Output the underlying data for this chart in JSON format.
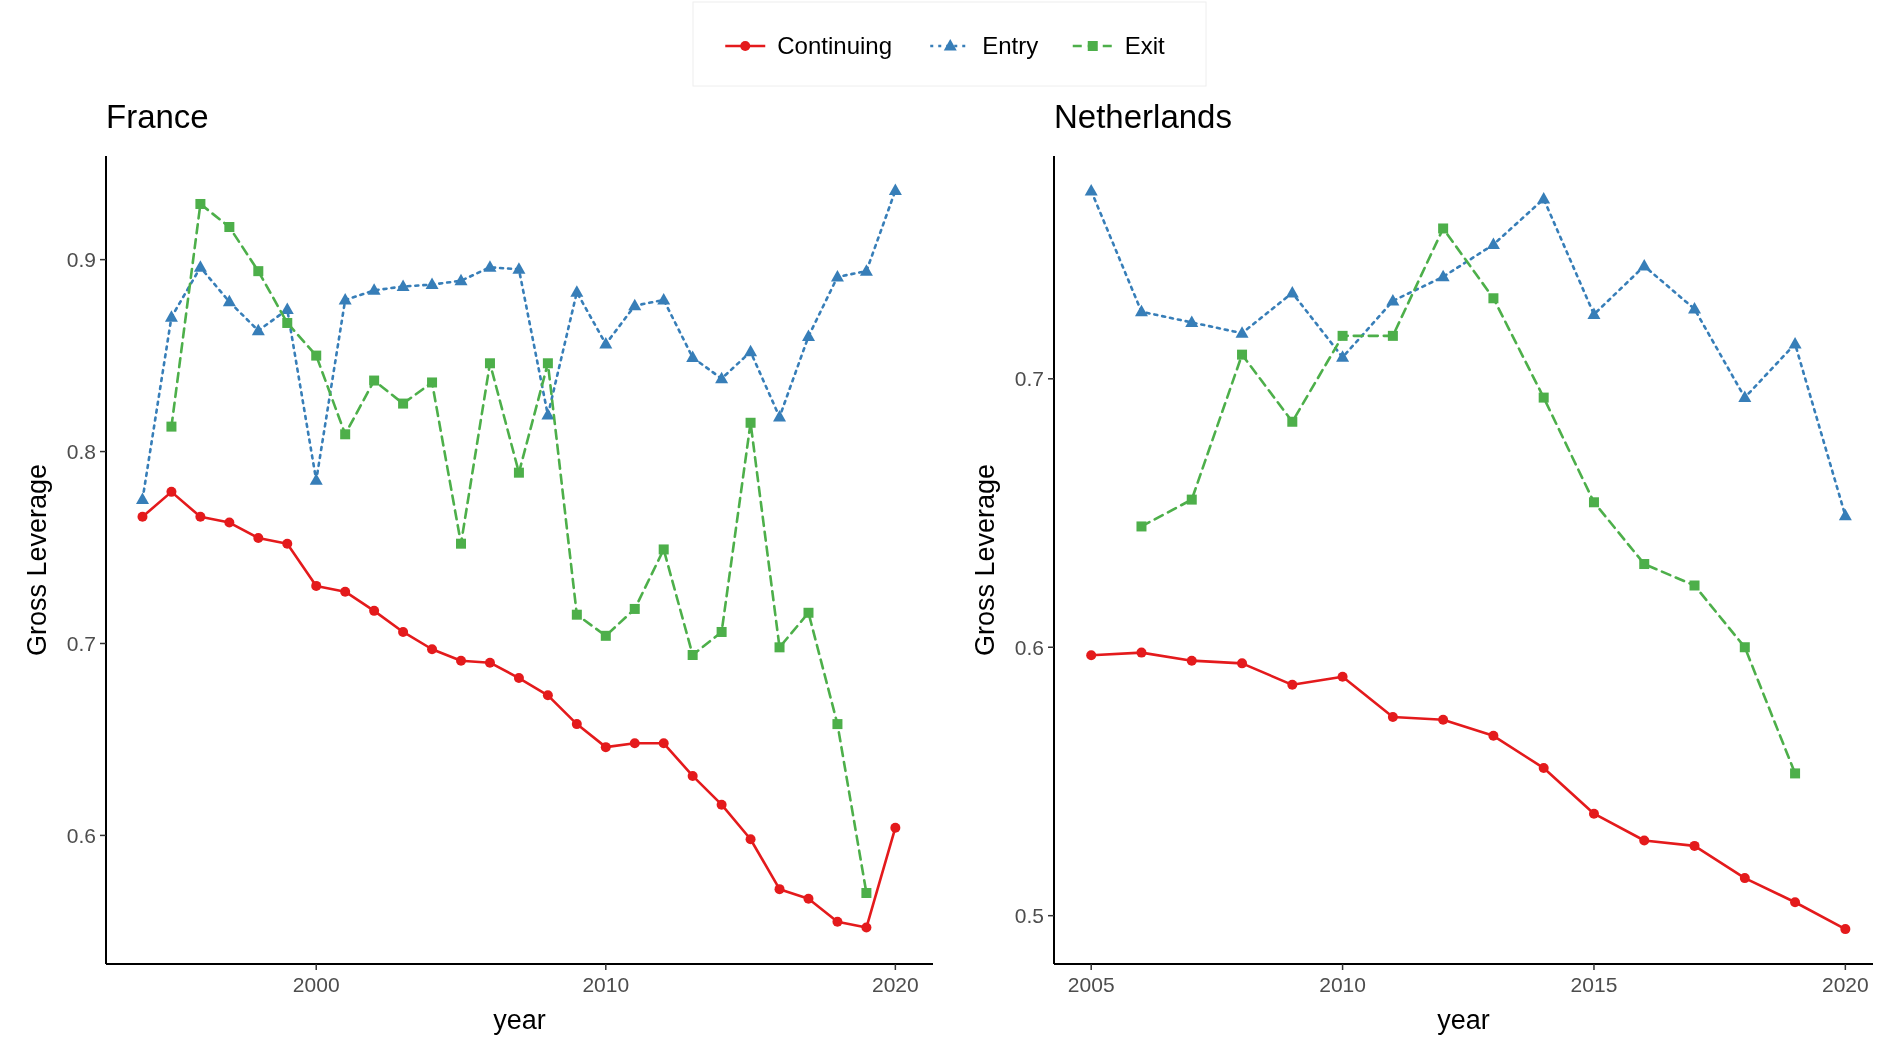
{
  "chart_data": [
    {
      "type": "line",
      "title": "France",
      "xlabel": "year",
      "ylabel": "Gross Leverage",
      "xlim": [
        1992.74,
        2021.3
      ],
      "xticks": [
        2000,
        2010,
        2020
      ],
      "ylim": [
        0.533,
        0.954
      ],
      "yticks": [
        0.6,
        0.7,
        0.8,
        0.9
      ],
      "grid": false,
      "legend": "top",
      "series": [
        {
          "name": "Continuing",
          "color": "#e41a1c",
          "marker": "circle",
          "line_style": "solid",
          "x": [
            1994,
            1995,
            1996,
            1997,
            1998,
            1999,
            2000,
            2001,
            2002,
            2003,
            2004,
            2005,
            2006,
            2007,
            2008,
            2009,
            2010,
            2011,
            2012,
            2013,
            2014,
            2015,
            2016,
            2017,
            2018,
            2019,
            2020
          ],
          "values": [
            0.766,
            0.779,
            0.766,
            0.763,
            0.755,
            0.752,
            0.73,
            0.727,
            0.717,
            0.706,
            0.697,
            0.691,
            0.69,
            0.682,
            0.673,
            0.658,
            0.646,
            0.648,
            0.648,
            0.631,
            0.616,
            0.598,
            0.572,
            0.567,
            0.555,
            0.552,
            0.604
          ]
        },
        {
          "name": "Entry",
          "color": "#377eb8",
          "marker": "triangle",
          "line_style": "dotted",
          "x": [
            1994,
            1995,
            1996,
            1997,
            1998,
            1999,
            2000,
            2001,
            2002,
            2003,
            2004,
            2005,
            2006,
            2007,
            2008,
            2009,
            2010,
            2011,
            2012,
            2013,
            2014,
            2015,
            2016,
            2017,
            2018,
            2019,
            2020
          ],
          "values": [
            0.775,
            0.87,
            0.896,
            0.878,
            0.863,
            0.874,
            0.785,
            0.879,
            0.884,
            0.886,
            0.887,
            0.889,
            0.896,
            0.895,
            0.819,
            0.883,
            0.856,
            0.876,
            0.879,
            0.849,
            0.838,
            0.852,
            0.818,
            0.86,
            0.891,
            0.894,
            0.936
          ]
        },
        {
          "name": "Exit",
          "color": "#4daf4a",
          "marker": "square",
          "line_style": "dashed",
          "x": [
            1995,
            1996,
            1997,
            1998,
            1999,
            2000,
            2001,
            2002,
            2003,
            2004,
            2005,
            2006,
            2007,
            2008,
            2009,
            2010,
            2011,
            2012,
            2013,
            2014,
            2015,
            2016,
            2017,
            2018,
            2019
          ],
          "values": [
            0.813,
            0.929,
            0.917,
            0.894,
            0.867,
            0.85,
            0.809,
            0.837,
            0.825,
            0.836,
            0.752,
            0.846,
            0.789,
            0.846,
            0.715,
            0.704,
            0.718,
            0.749,
            0.694,
            0.706,
            0.815,
            0.698,
            0.716,
            0.658,
            0.57
          ]
        }
      ]
    },
    {
      "type": "line",
      "title": "Netherlands",
      "xlabel": "year",
      "ylabel": "Gross Leverage",
      "xlim": [
        2004.26,
        2020.55
      ],
      "xticks": [
        2005,
        2010,
        2015,
        2020
      ],
      "ylim": [
        0.482,
        0.783
      ],
      "yticks": [
        0.5,
        0.6,
        0.7
      ],
      "grid": false,
      "legend": "top",
      "series": [
        {
          "name": "Continuing",
          "color": "#e41a1c",
          "marker": "circle",
          "line_style": "solid",
          "x": [
            2005,
            2006,
            2007,
            2008,
            2009,
            2010,
            2011,
            2012,
            2013,
            2014,
            2015,
            2016,
            2017,
            2018,
            2019,
            2020
          ],
          "values": [
            0.597,
            0.598,
            0.595,
            0.594,
            0.586,
            0.589,
            0.574,
            0.573,
            0.567,
            0.555,
            0.538,
            0.528,
            0.526,
            0.514,
            0.505,
            0.495
          ]
        },
        {
          "name": "Entry",
          "color": "#377eb8",
          "marker": "triangle",
          "line_style": "dotted",
          "x": [
            2005,
            2006,
            2007,
            2008,
            2009,
            2010,
            2011,
            2012,
            2013,
            2014,
            2015,
            2016,
            2017,
            2018,
            2019,
            2020
          ],
          "values": [
            0.77,
            0.725,
            0.721,
            0.717,
            0.732,
            0.708,
            0.729,
            0.738,
            0.75,
            0.767,
            0.724,
            0.742,
            0.726,
            0.693,
            0.713,
            0.649
          ]
        },
        {
          "name": "Exit",
          "color": "#4daf4a",
          "marker": "square",
          "line_style": "dashed",
          "x": [
            2006,
            2007,
            2008,
            2009,
            2010,
            2011,
            2012,
            2013,
            2014,
            2015,
            2016,
            2017,
            2018,
            2019
          ],
          "values": [
            0.645,
            0.655,
            0.709,
            0.684,
            0.716,
            0.716,
            0.756,
            0.73,
            0.693,
            0.654,
            0.631,
            0.623,
            0.6,
            0.553
          ]
        }
      ]
    }
  ]
}
